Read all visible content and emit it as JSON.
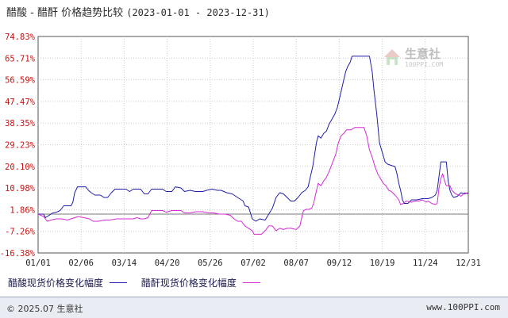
{
  "title": {
    "main": "醋酸 - 醋酐 价格趋势比较",
    "range": "(2023-01-01 - 2023-12-31)"
  },
  "watermark": {
    "name": "生意社",
    "url": "100PPI.COM",
    "icon": "house-logo-icon"
  },
  "footer": {
    "copyright": "© 2025.07 生意社",
    "site": "www.100PPI.com"
  },
  "colors": {
    "series1": "#1f1fa8",
    "series2": "#d42bd4",
    "ytick": "#cc1111",
    "grid": "#cccccc"
  },
  "chart_data": {
    "type": "line",
    "ylim": [
      -16.38,
      74.83
    ],
    "yticks": [
      "74.83%",
      "65.71%",
      "56.59%",
      "47.47%",
      "38.35%",
      "29.23%",
      "20.10%",
      "10.98%",
      "1.86%",
      "-7.26%",
      "-16.38%"
    ],
    "xticks": [
      "01/01",
      "02/06",
      "03/14",
      "04/20",
      "05/26",
      "07/02",
      "08/07",
      "09/12",
      "10/19",
      "11/24",
      "12/31"
    ],
    "grid": true,
    "legend_position": "bottom",
    "series": [
      {
        "name": "醋酸现货价格变化幅度",
        "color": "#1f1fa8",
        "points": [
          [
            0,
            0
          ],
          [
            6,
            0
          ],
          [
            8,
            -1.5
          ],
          [
            12,
            -0.5
          ],
          [
            16,
            0.5
          ],
          [
            20,
            0.8
          ],
          [
            24,
            1.5
          ],
          [
            28,
            3.5
          ],
          [
            36,
            3.5
          ],
          [
            38,
            5
          ],
          [
            40,
            9
          ],
          [
            43,
            11.5
          ],
          [
            52,
            11.5
          ],
          [
            55,
            10
          ],
          [
            58,
            9
          ],
          [
            62,
            8
          ],
          [
            68,
            8
          ],
          [
            72,
            7
          ],
          [
            76,
            7
          ],
          [
            80,
            9
          ],
          [
            84,
            10.5
          ],
          [
            96,
            10.5
          ],
          [
            100,
            9.5
          ],
          [
            104,
            10.5
          ],
          [
            112,
            10.5
          ],
          [
            116,
            8.5
          ],
          [
            120,
            8.5
          ],
          [
            124,
            10.5
          ],
          [
            136,
            10.5
          ],
          [
            140,
            9.5
          ],
          [
            146,
            9.5
          ],
          [
            150,
            11.5
          ],
          [
            156,
            11
          ],
          [
            160,
            9.5
          ],
          [
            166,
            10
          ],
          [
            172,
            9.5
          ],
          [
            180,
            9.5
          ],
          [
            184,
            10
          ],
          [
            190,
            10.5
          ],
          [
            196,
            10
          ],
          [
            200,
            10
          ],
          [
            206,
            9
          ],
          [
            212,
            8.5
          ],
          [
            216,
            7.5
          ],
          [
            220,
            6.5
          ],
          [
            224,
            5.5
          ],
          [
            226,
            3.5
          ],
          [
            230,
            3
          ],
          [
            234,
            -2
          ],
          [
            238,
            -3
          ],
          [
            242,
            -2
          ],
          [
            248,
            -2.5
          ],
          [
            252,
            0
          ],
          [
            256,
            2.5
          ],
          [
            260,
            7
          ],
          [
            264,
            9
          ],
          [
            268,
            8.5
          ],
          [
            272,
            7
          ],
          [
            276,
            5.5
          ],
          [
            280,
            5.5
          ],
          [
            284,
            7
          ],
          [
            288,
            9
          ],
          [
            292,
            10
          ],
          [
            295,
            11.5
          ],
          [
            297,
            15
          ],
          [
            300,
            20
          ],
          [
            302,
            25
          ],
          [
            304,
            30
          ],
          [
            306,
            33
          ],
          [
            309,
            32
          ],
          [
            312,
            34
          ],
          [
            315,
            35
          ],
          [
            318,
            38
          ],
          [
            321,
            40
          ],
          [
            324,
            42
          ],
          [
            327,
            45
          ],
          [
            330,
            50
          ],
          [
            333,
            55
          ],
          [
            336,
            60
          ],
          [
            338,
            62
          ],
          [
            341,
            64
          ],
          [
            343,
            66.5
          ],
          [
            362,
            66.5
          ],
          [
            365,
            60
          ],
          [
            367,
            52
          ],
          [
            370,
            42
          ],
          [
            373,
            30
          ],
          [
            376,
            26
          ],
          [
            379,
            22
          ],
          [
            382,
            21
          ],
          [
            390,
            20
          ],
          [
            392,
            17
          ],
          [
            394,
            13
          ],
          [
            396,
            10
          ],
          [
            398,
            6
          ],
          [
            400,
            4.5
          ],
          [
            404,
            4.5
          ],
          [
            408,
            6
          ],
          [
            414,
            6
          ],
          [
            420,
            6.5
          ],
          [
            426,
            6.5
          ],
          [
            430,
            7
          ],
          [
            434,
            8
          ],
          [
            436,
            10
          ],
          [
            438,
            16
          ],
          [
            440,
            22
          ],
          [
            446,
            22
          ],
          [
            448,
            14
          ],
          [
            450,
            10
          ],
          [
            452,
            8
          ],
          [
            454,
            7
          ],
          [
            458,
            7.5
          ],
          [
            462,
            9
          ],
          [
            466,
            8.5
          ],
          [
            470,
            9
          ]
        ]
      },
      {
        "name": "醋酐现货价格变化幅度",
        "color": "#d42bd4",
        "points": [
          [
            0,
            0
          ],
          [
            6,
            -1
          ],
          [
            10,
            -3
          ],
          [
            14,
            -2.5
          ],
          [
            20,
            -2
          ],
          [
            26,
            -2
          ],
          [
            32,
            -2.5
          ],
          [
            36,
            -2
          ],
          [
            40,
            -1.5
          ],
          [
            44,
            -1
          ],
          [
            50,
            -1.5
          ],
          [
            56,
            -2
          ],
          [
            60,
            -3
          ],
          [
            66,
            -3
          ],
          [
            72,
            -2.5
          ],
          [
            78,
            -2.5
          ],
          [
            86,
            -2
          ],
          [
            96,
            -2
          ],
          [
            104,
            -2
          ],
          [
            108,
            -1.5
          ],
          [
            112,
            -2
          ],
          [
            116,
            -2
          ],
          [
            120,
            -1.5
          ],
          [
            124,
            1.5
          ],
          [
            130,
            1.5
          ],
          [
            136,
            1.5
          ],
          [
            140,
            0.8
          ],
          [
            146,
            1.5
          ],
          [
            156,
            1.5
          ],
          [
            160,
            0.5
          ],
          [
            166,
            0.5
          ],
          [
            172,
            1
          ],
          [
            180,
            1
          ],
          [
            186,
            0.5
          ],
          [
            192,
            0.5
          ],
          [
            198,
            0
          ],
          [
            204,
            0
          ],
          [
            210,
            -0.5
          ],
          [
            214,
            -2
          ],
          [
            218,
            -3
          ],
          [
            222,
            -3
          ],
          [
            226,
            -5
          ],
          [
            230,
            -6
          ],
          [
            234,
            -7
          ],
          [
            236,
            -8.5
          ],
          [
            244,
            -8.5
          ],
          [
            248,
            -7
          ],
          [
            252,
            -5
          ],
          [
            256,
            -5
          ],
          [
            260,
            -7
          ],
          [
            264,
            -6
          ],
          [
            268,
            -6.5
          ],
          [
            272,
            -6
          ],
          [
            276,
            -6
          ],
          [
            282,
            -6.5
          ],
          [
            286,
            -5
          ],
          [
            288,
            -1.5
          ],
          [
            290,
            1.5
          ],
          [
            293,
            2
          ],
          [
            296,
            2
          ],
          [
            299,
            2.5
          ],
          [
            301,
            4.5
          ],
          [
            303,
            8
          ],
          [
            306,
            13
          ],
          [
            309,
            12
          ],
          [
            312,
            14
          ],
          [
            315,
            15.5
          ],
          [
            318,
            18
          ],
          [
            322,
            22
          ],
          [
            325,
            25
          ],
          [
            328,
            30
          ],
          [
            331,
            33
          ],
          [
            334,
            34
          ],
          [
            337,
            35.5
          ],
          [
            342,
            35.5
          ],
          [
            346,
            36.5
          ],
          [
            356,
            36.5
          ],
          [
            359,
            33
          ],
          [
            362,
            27
          ],
          [
            365,
            24
          ],
          [
            368,
            20
          ],
          [
            371,
            17
          ],
          [
            374,
            15
          ],
          [
            377,
            13
          ],
          [
            380,
            12
          ],
          [
            383,
            10
          ],
          [
            386,
            9.5
          ],
          [
            390,
            8
          ],
          [
            392,
            7
          ],
          [
            394,
            6
          ],
          [
            396,
            4
          ],
          [
            399,
            4.5
          ],
          [
            402,
            5.5
          ],
          [
            408,
            5
          ],
          [
            412,
            5.5
          ],
          [
            416,
            5.5
          ],
          [
            420,
            6
          ],
          [
            424,
            5
          ],
          [
            426,
            5.5
          ],
          [
            430,
            4.5
          ],
          [
            434,
            4
          ],
          [
            436,
            4.5
          ],
          [
            438,
            11
          ],
          [
            440,
            15
          ],
          [
            442,
            17
          ],
          [
            444,
            14
          ],
          [
            446,
            12
          ],
          [
            450,
            12
          ],
          [
            452,
            10
          ],
          [
            456,
            8.5
          ],
          [
            460,
            8
          ],
          [
            462,
            7.5
          ],
          [
            466,
            9
          ],
          [
            470,
            8.5
          ]
        ]
      }
    ]
  }
}
